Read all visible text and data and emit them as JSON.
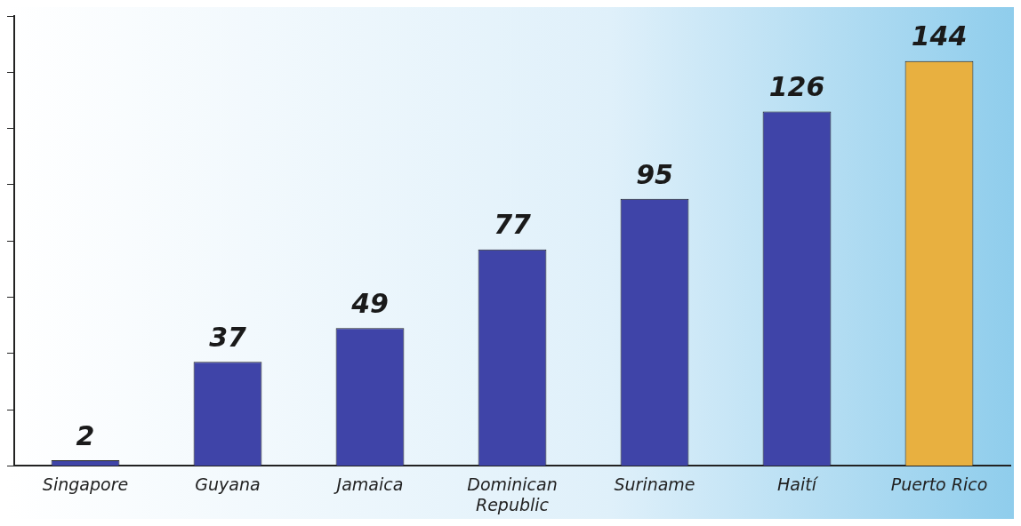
{
  "chart_data": {
    "type": "bar",
    "categories": [
      "Singapore",
      "Guyana",
      "Jamaica",
      "Dominican Republic",
      "Suriname",
      "Haití",
      "Puerto Rico"
    ],
    "values": [
      2,
      37,
      49,
      77,
      95,
      126,
      144
    ],
    "colors": [
      "#3f44a8",
      "#3f44a8",
      "#3f44a8",
      "#3f44a8",
      "#3f44a8",
      "#3f44a8",
      "#e8b040"
    ],
    "tick_labels": "x",
    "grid": false,
    "legend": false,
    "data_labels": true
  }
}
